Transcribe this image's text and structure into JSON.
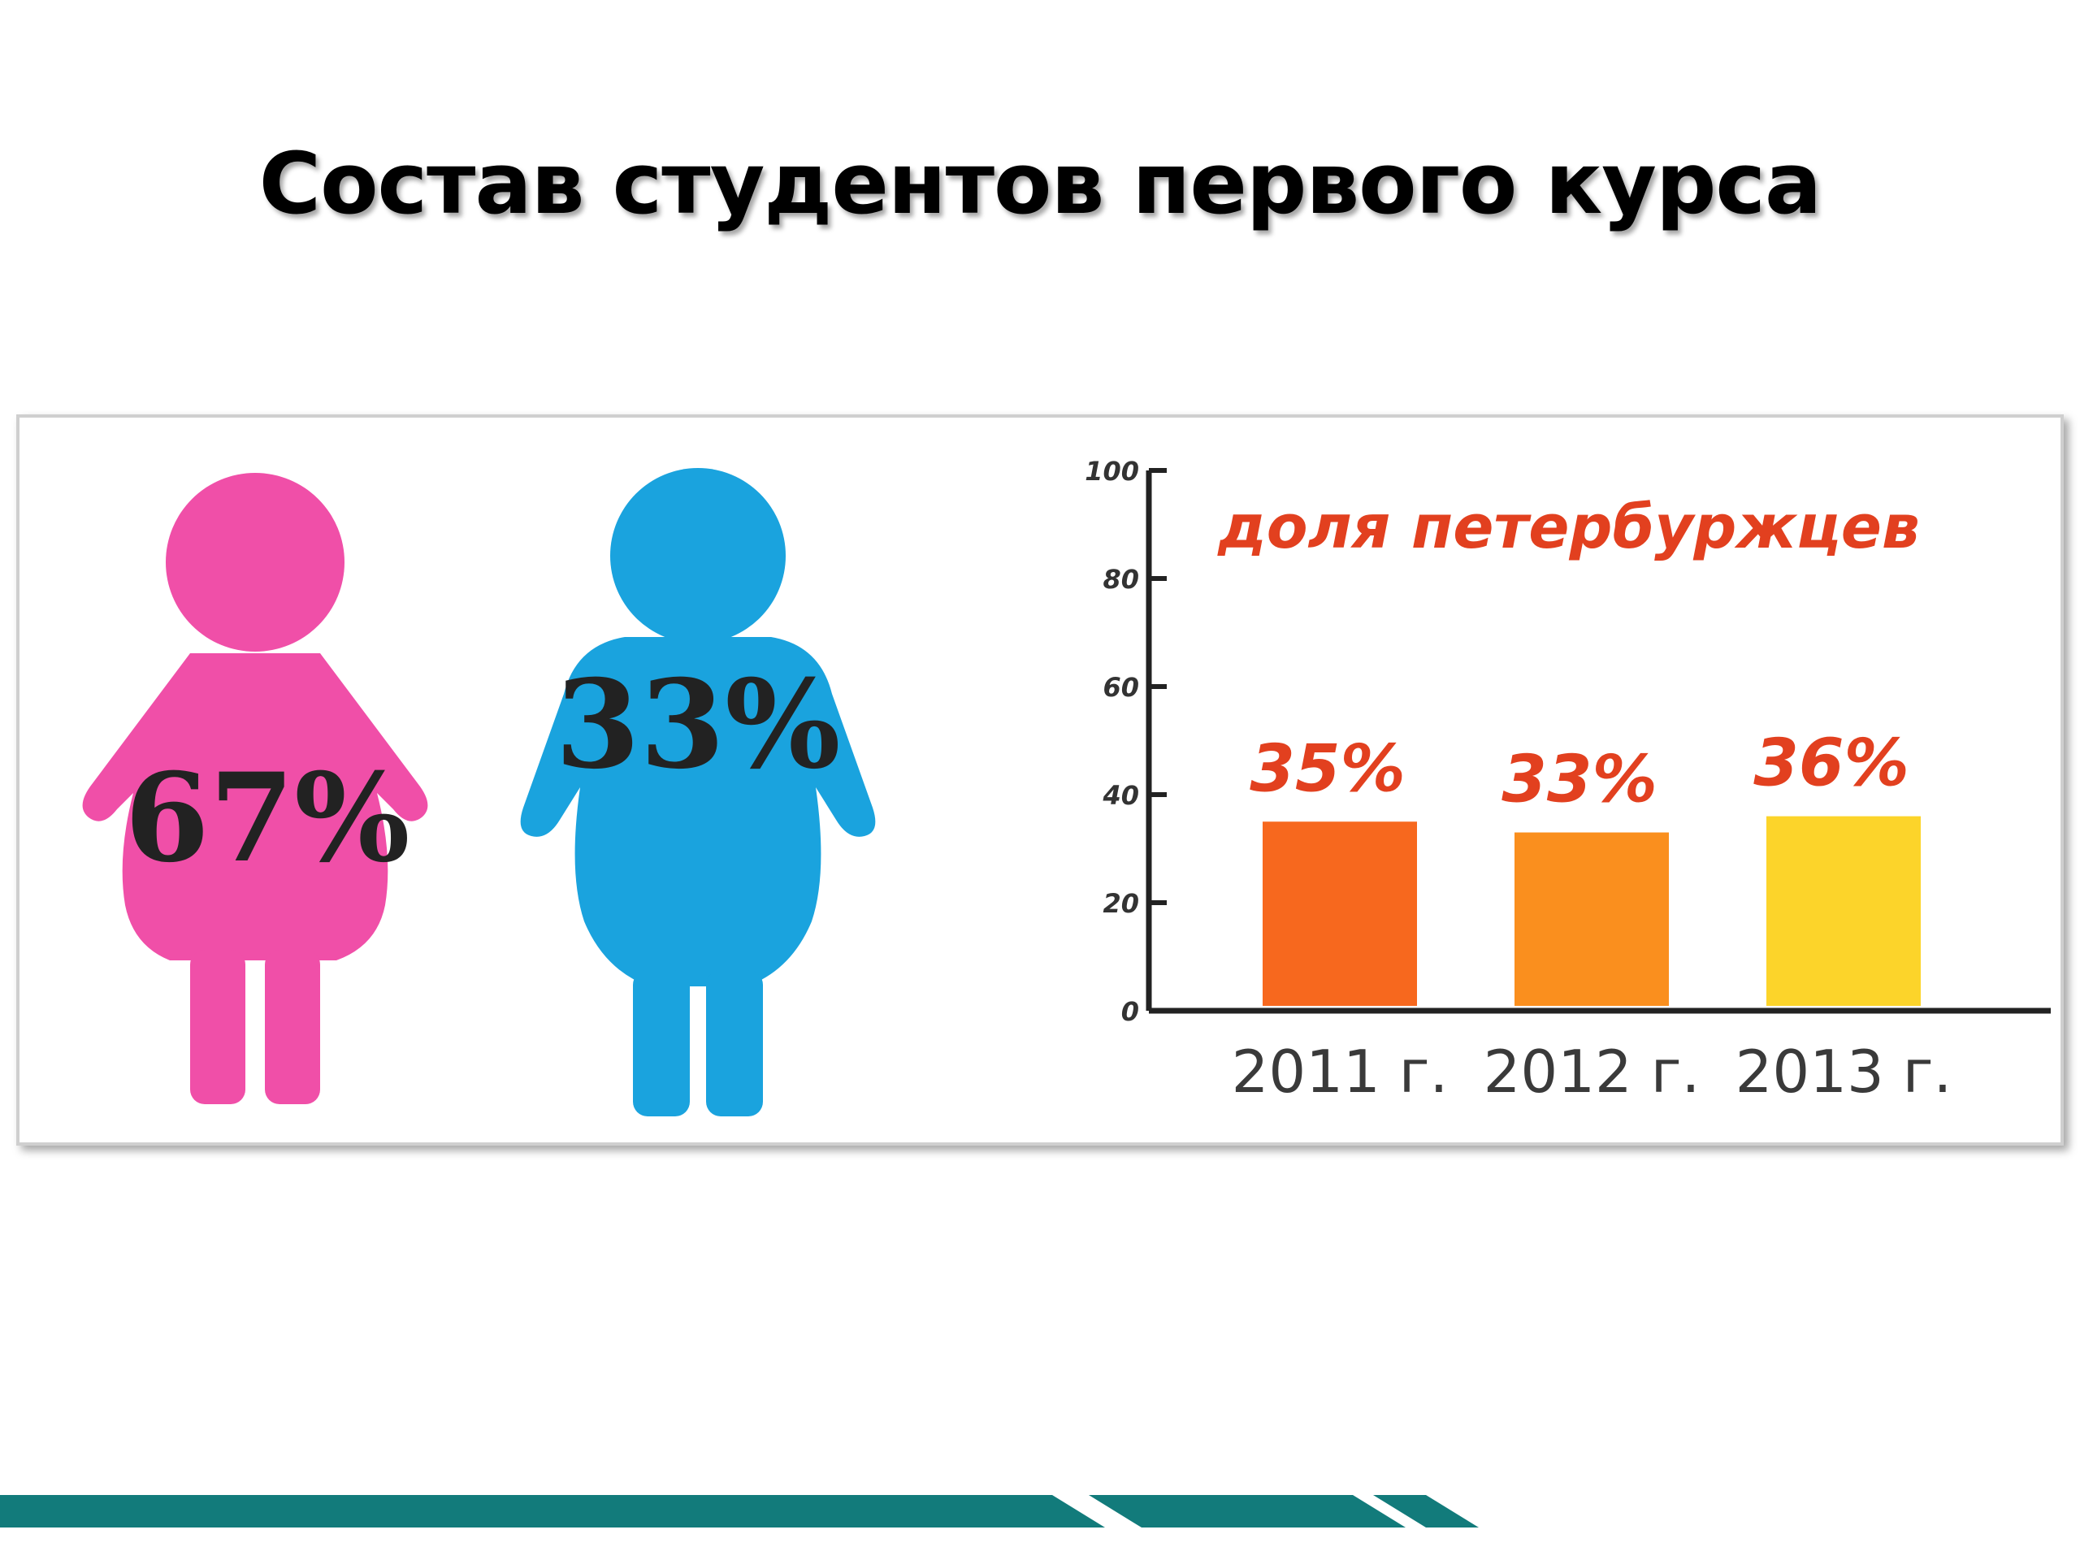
{
  "slide": {
    "title": "Состав студентов первого курса"
  },
  "gender": {
    "female": {
      "label": "67%",
      "value": 67,
      "color": "#f04fa8",
      "icon": "female-figure-icon"
    },
    "male": {
      "label": "33%",
      "value": 33,
      "color": "#1aa3de",
      "icon": "male-figure-icon"
    }
  },
  "chart_data": {
    "type": "bar",
    "title": "доля петербуржцев",
    "categories": [
      "2011 г.",
      "2012 г.",
      "2013 г."
    ],
    "values": [
      35,
      33,
      36
    ],
    "data_labels": [
      "35%",
      "33%",
      "36%"
    ],
    "colors": [
      "#f7681e",
      "#fa8f1e",
      "#fcd42a"
    ],
    "ylim": [
      0,
      100
    ],
    "yticks": [
      0,
      20,
      40,
      60,
      80,
      100
    ],
    "xlabel": "",
    "ylabel": "",
    "grid": false
  },
  "theme": {
    "footer_color": "#127b7b"
  }
}
